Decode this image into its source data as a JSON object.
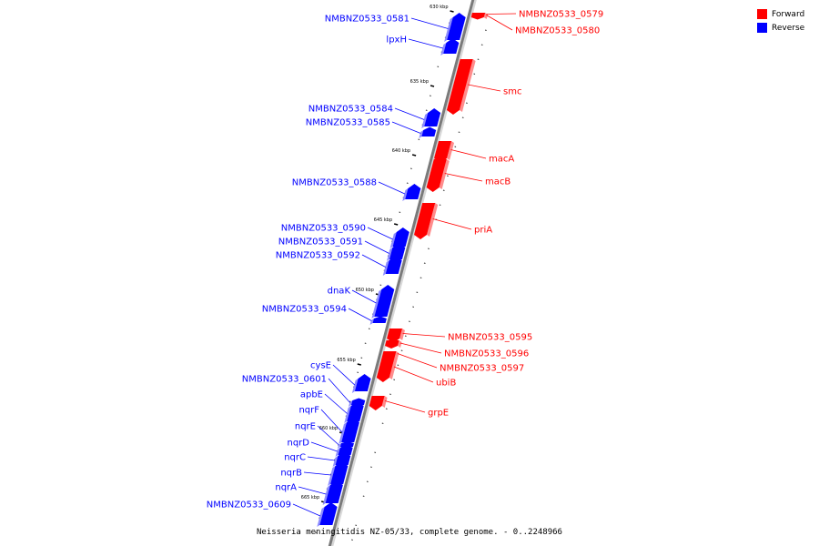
{
  "legend": {
    "forward_label": "Forward",
    "reverse_label": "Reverse",
    "forward_color": "#ff0000",
    "reverse_color": "#0000ff"
  },
  "caption": "Neisseria meningitidis NZ-05/33, complete genome. - 0..2248966",
  "ticks": [
    {
      "label": "630 kbp"
    },
    {
      "label": "635 kbp"
    },
    {
      "label": "640 kbp"
    },
    {
      "label": "645 kbp"
    },
    {
      "label": "650 kbp"
    },
    {
      "label": "655 kbp"
    },
    {
      "label": "660 kbp"
    },
    {
      "label": "665 kbp"
    }
  ],
  "genes": [
    {
      "name": "NMBNZ0533_0579",
      "strand": "forward"
    },
    {
      "name": "NMBNZ0533_0580",
      "strand": "forward"
    },
    {
      "name": "NMBNZ0533_0581",
      "strand": "reverse"
    },
    {
      "name": "lpxH",
      "strand": "reverse"
    },
    {
      "name": "smc",
      "strand": "forward"
    },
    {
      "name": "NMBNZ0533_0584",
      "strand": "reverse"
    },
    {
      "name": "NMBNZ0533_0585",
      "strand": "reverse"
    },
    {
      "name": "macA",
      "strand": "forward"
    },
    {
      "name": "macB",
      "strand": "forward"
    },
    {
      "name": "NMBNZ0533_0588",
      "strand": "reverse"
    },
    {
      "name": "priA",
      "strand": "forward"
    },
    {
      "name": "NMBNZ0533_0590",
      "strand": "reverse"
    },
    {
      "name": "NMBNZ0533_0591",
      "strand": "reverse"
    },
    {
      "name": "NMBNZ0533_0592",
      "strand": "reverse"
    },
    {
      "name": "dnaK",
      "strand": "reverse"
    },
    {
      "name": "NMBNZ0533_0594",
      "strand": "reverse"
    },
    {
      "name": "NMBNZ0533_0595",
      "strand": "forward"
    },
    {
      "name": "NMBNZ0533_0596",
      "strand": "forward"
    },
    {
      "name": "NMBNZ0533_0597",
      "strand": "forward"
    },
    {
      "name": "ubiB",
      "strand": "forward"
    },
    {
      "name": "grpE",
      "strand": "forward"
    },
    {
      "name": "cysE",
      "strand": "reverse"
    },
    {
      "name": "NMBNZ0533_0601",
      "strand": "reverse"
    },
    {
      "name": "apbE",
      "strand": "reverse"
    },
    {
      "name": "nqrF",
      "strand": "reverse"
    },
    {
      "name": "nqrE",
      "strand": "reverse"
    },
    {
      "name": "nqrD",
      "strand": "reverse"
    },
    {
      "name": "nqrC",
      "strand": "reverse"
    },
    {
      "name": "nqrB",
      "strand": "reverse"
    },
    {
      "name": "nqrA",
      "strand": "reverse"
    },
    {
      "name": "NMBNZ0533_0609",
      "strand": "reverse"
    }
  ]
}
